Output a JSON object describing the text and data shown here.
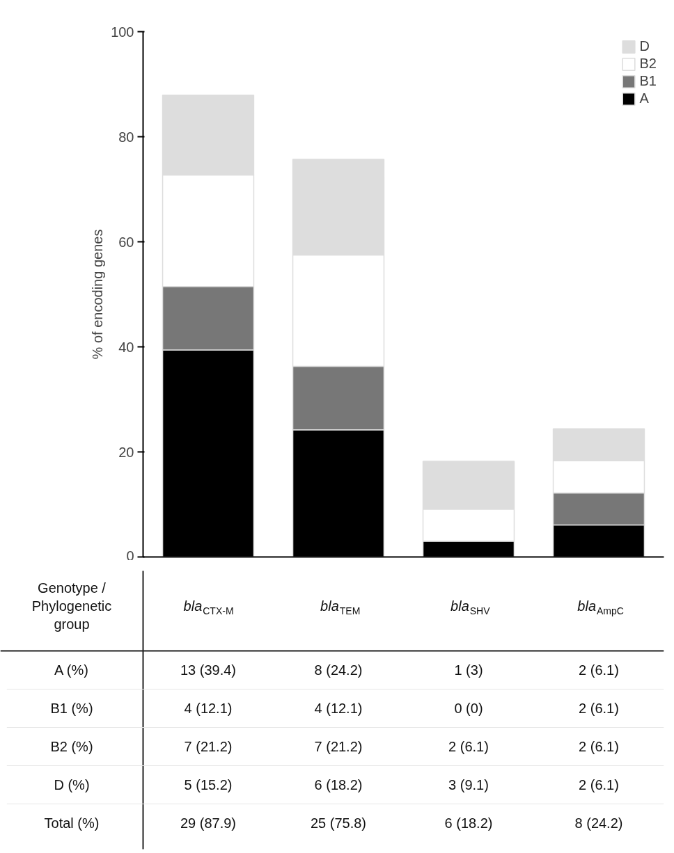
{
  "chart_data": {
    "type": "bar",
    "stacked": true,
    "ylabel": "% of encoding genes",
    "categories": [
      "bla$_{CTX-M}$",
      "bla$_{TEM}$",
      "bla$_{SHV}$",
      "bla$_{AmpC}$"
    ],
    "series": [
      {
        "name": "A",
        "color": "#000000",
        "values": [
          39.4,
          24.2,
          3,
          6.1
        ],
        "value_labels": [
          "13 (39.4)",
          "8 (24.2)",
          "1 (3)",
          "2 (6.1)"
        ]
      },
      {
        "name": "B1",
        "color": "#777777",
        "values": [
          12.1,
          12.1,
          0,
          6.1
        ],
        "value_labels": [
          "4 (12.1)",
          "4 (12.1)",
          "0 (0)",
          "2 (6.1)"
        ]
      },
      {
        "name": "B2",
        "color": "#ffffff",
        "values": [
          21.2,
          21.2,
          6.1,
          6.1
        ],
        "value_labels": [
          "7 (21.2)",
          "7 (21.2)",
          "2 (6.1)",
          "2 (6.1)"
        ]
      },
      {
        "name": "D",
        "color": "#dddddd",
        "values": [
          15.2,
          18.2,
          9.1,
          6.1
        ],
        "value_labels": [
          "5 (15.2)",
          "6 (18.2)",
          "3 (9.1)",
          "2 (6.1)"
        ]
      }
    ],
    "annotations": [
      "Genotype / Phylogenetic group",
      "A (%)",
      "B1 (%)",
      "B2 (%)",
      "D (%)",
      "Total (%)",
      "29 (87.9)",
      "25 (75.8)",
      "6 (18.2)",
      "8 (24.2)"
    ],
    "ylim": [
      0,
      100
    ],
    "yticks": [
      0,
      20,
      40,
      60,
      80,
      100
    ],
    "grid": false,
    "legend": "top right",
    "tick_labels": "y"
  }
}
